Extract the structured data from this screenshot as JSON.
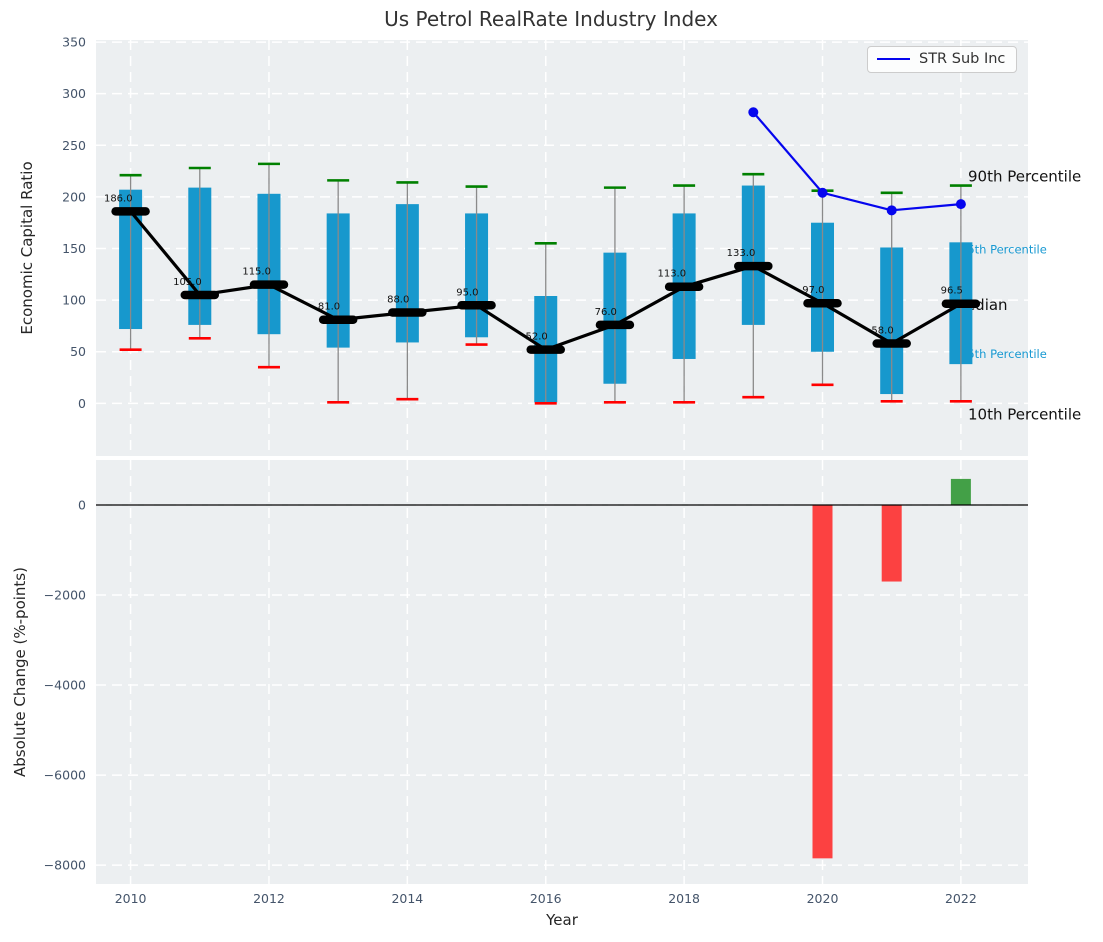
{
  "colors": {
    "panel_bg": "#eceff1",
    "grid": "#ffffff",
    "box_fill": "#1798cd",
    "whisker": "#8a8a8a",
    "cap_top": "#008000",
    "cap_bottom": "#ff0000",
    "median": "#000000",
    "str_line": "#0505ee",
    "bar_negative": "#fc4141",
    "bar_positive": "#43a047",
    "tick_label": "#44546a",
    "axis_label": "#262626",
    "annotation_dark": "#111111",
    "annotation_cyan": "#1899d2",
    "zero_line": "#000000",
    "title": "#333333"
  },
  "chart_data": [
    {
      "type": "boxplot+line",
      "title": "Us Petrol RealRate Industry Index",
      "xlabel": "Year",
      "ylabel": "Economic Capital Ratio",
      "ylim": [
        -51,
        352
      ],
      "xlim": [
        2009.5,
        2022.97
      ],
      "yticks": [
        0,
        50,
        100,
        150,
        200,
        250,
        300,
        350
      ],
      "xticks": [
        2010,
        2012,
        2014,
        2016,
        2018,
        2020,
        2022
      ],
      "grid": true,
      "categories": [
        2010,
        2011,
        2012,
        2013,
        2014,
        2015,
        2016,
        2017,
        2018,
        2019,
        2020,
        2021,
        2022
      ],
      "series": [
        {
          "name": "90th Percentile",
          "values": [
            221,
            228,
            232,
            216,
            214,
            210,
            155,
            209,
            211,
            222,
            206,
            204,
            211
          ]
        },
        {
          "name": "75th Percentile",
          "values": [
            207,
            209,
            203,
            184,
            193,
            184,
            104,
            146,
            184,
            211,
            175,
            151,
            156
          ]
        },
        {
          "name": "Median",
          "values": [
            186,
            105,
            115,
            81,
            88,
            95,
            52,
            76,
            113,
            133,
            97,
            58,
            96.5
          ]
        },
        {
          "name": "25th Percentile",
          "values": [
            72,
            76,
            67,
            54,
            59,
            64,
            1,
            19,
            43,
            76,
            50,
            9,
            38
          ]
        },
        {
          "name": "10th Percentile",
          "values": [
            52,
            63,
            35,
            1,
            4,
            57,
            0,
            1,
            1,
            6,
            18,
            2,
            2
          ]
        }
      ],
      "median_labels": [
        "186.0",
        "105.0",
        "115.0",
        "81.0",
        "88.0",
        "95.0",
        "52.0",
        "76.0",
        "113.0",
        "133.0",
        "97.0",
        "58.0",
        "96.5"
      ],
      "str_series": {
        "name": "STR Sub Inc",
        "x": [
          2019,
          2020,
          2021,
          2022
        ],
        "values": [
          282,
          204,
          187,
          193
        ]
      },
      "legend": {
        "label": "STR Sub Inc",
        "position": "upper right"
      },
      "right_labels": [
        {
          "text": "90th Percentile",
          "value": 215,
          "color": "dark"
        },
        {
          "text": "75th Percentile",
          "value": 145,
          "color": "cyan"
        },
        {
          "text": "Median",
          "value": 90.5,
          "color": "dark"
        },
        {
          "text": "25th Percentile",
          "value": 44,
          "color": "cyan"
        },
        {
          "text": "10th Percentile",
          "value": -15.5,
          "color": "dark"
        }
      ]
    },
    {
      "type": "bar",
      "ylabel": "Absolute Change (%-points)",
      "ylim": [
        -8420,
        1000
      ],
      "yticks": [
        0,
        -2000,
        -4000,
        -6000,
        -8000
      ],
      "x": [
        2020,
        2021,
        2022
      ],
      "values": [
        -7850,
        -1700,
        580
      ],
      "zero_line": true
    }
  ]
}
